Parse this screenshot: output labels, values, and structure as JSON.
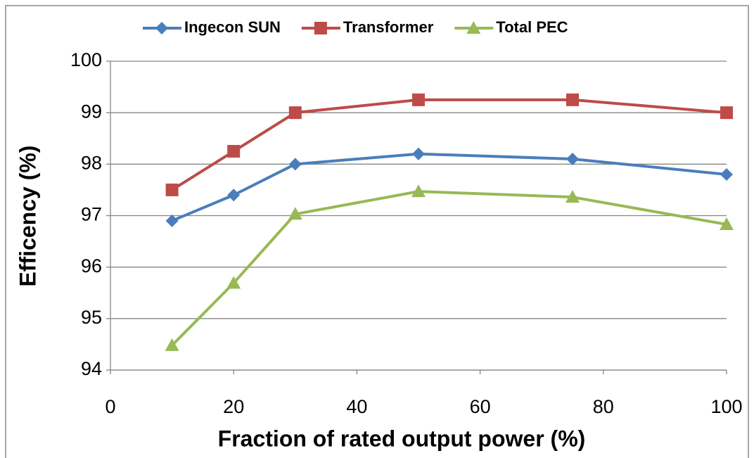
{
  "chart_data": {
    "type": "line",
    "x_label": "Fraction of rated output power (%)",
    "y_label": "Efficency (%)",
    "x": [
      10,
      20,
      30,
      50,
      75,
      100
    ],
    "series": [
      {
        "name": "Ingecon SUN",
        "color": "#4a7ebb",
        "marker": "diamond",
        "values": [
          96.9,
          97.4,
          98.0,
          98.2,
          98.1,
          97.8
        ]
      },
      {
        "name": "Transformer",
        "color": "#be4b48",
        "marker": "square",
        "values": [
          97.5,
          98.25,
          99.0,
          99.25,
          99.25,
          99.0
        ]
      },
      {
        "name": "Total PEC",
        "color": "#98b954",
        "marker": "triangle",
        "values": [
          94.48,
          95.69,
          97.03,
          97.47,
          97.36,
          96.83
        ]
      }
    ],
    "xlim": [
      0,
      100
    ],
    "xticks": [
      0,
      20,
      40,
      60,
      80,
      100
    ],
    "ylim": [
      94,
      100
    ],
    "yticks": [
      94,
      95,
      96,
      97,
      98,
      99,
      100
    ],
    "grid": true,
    "legend": "top"
  }
}
